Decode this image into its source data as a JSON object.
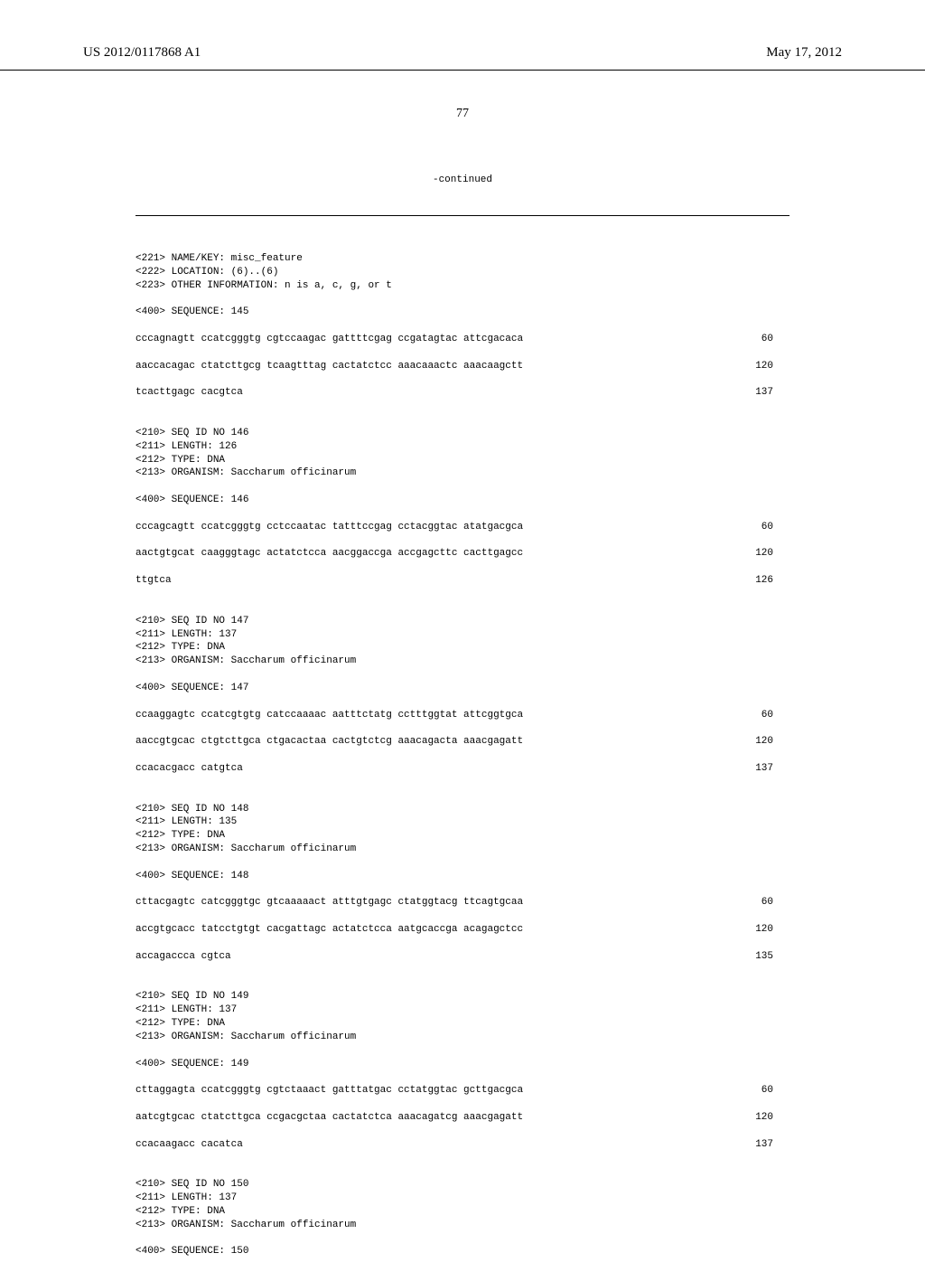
{
  "header": {
    "pub_number": "US 2012/0117868 A1",
    "pub_date": "May 17, 2012"
  },
  "page_number": "77",
  "continued_label": "-continued",
  "sequences": [
    {
      "pre": [
        "<221> NAME/KEY: misc_feature",
        "<222> LOCATION: (6)..(6)",
        "<223> OTHER INFORMATION: n is a, c, g, or t",
        "",
        "<400> SEQUENCE: 145",
        ""
      ],
      "rows": [
        {
          "t": "cccagnagtt ccatcgggtg cgtccaagac gattttcgag ccgatagtac attcgacaca",
          "n": "60"
        },
        {
          "t": "",
          "n": ""
        },
        {
          "t": "aaccacagac ctatcttgcg tcaagtttag cactatctcc aaacaaactc aaacaagctt",
          "n": "120"
        },
        {
          "t": "",
          "n": ""
        },
        {
          "t": "tcacttgagc cacgtca",
          "n": "137"
        }
      ]
    },
    {
      "pre": [
        "",
        "",
        "<210> SEQ ID NO 146",
        "<211> LENGTH: 126",
        "<212> TYPE: DNA",
        "<213> ORGANISM: Saccharum officinarum",
        "",
        "<400> SEQUENCE: 146",
        ""
      ],
      "rows": [
        {
          "t": "cccagcagtt ccatcgggtg cctccaatac tatttccgag cctacggtac atatgacgca",
          "n": "60"
        },
        {
          "t": "",
          "n": ""
        },
        {
          "t": "aactgtgcat caagggtagc actatctcca aacggaccga accgagcttc cacttgagcc",
          "n": "120"
        },
        {
          "t": "",
          "n": ""
        },
        {
          "t": "ttgtca",
          "n": "126"
        }
      ]
    },
    {
      "pre": [
        "",
        "",
        "<210> SEQ ID NO 147",
        "<211> LENGTH: 137",
        "<212> TYPE: DNA",
        "<213> ORGANISM: Saccharum officinarum",
        "",
        "<400> SEQUENCE: 147",
        ""
      ],
      "rows": [
        {
          "t": "ccaaggagtc ccatcgtgtg catccaaaac aatttctatg cctttggtat attcggtgca",
          "n": "60"
        },
        {
          "t": "",
          "n": ""
        },
        {
          "t": "aaccgtgcac ctgtcttgca ctgacactaa cactgtctcg aaacagacta aaacgagatt",
          "n": "120"
        },
        {
          "t": "",
          "n": ""
        },
        {
          "t": "ccacacgacc catgtca",
          "n": "137"
        }
      ]
    },
    {
      "pre": [
        "",
        "",
        "<210> SEQ ID NO 148",
        "<211> LENGTH: 135",
        "<212> TYPE: DNA",
        "<213> ORGANISM: Saccharum officinarum",
        "",
        "<400> SEQUENCE: 148",
        ""
      ],
      "rows": [
        {
          "t": "cttacgagtc catcgggtgc gtcaaaaact atttgtgagc ctatggtacg ttcagtgcaa",
          "n": "60"
        },
        {
          "t": "",
          "n": ""
        },
        {
          "t": "accgtgcacc tatcctgtgt cacgattagc actatctcca aatgcaccga acagagctcc",
          "n": "120"
        },
        {
          "t": "",
          "n": ""
        },
        {
          "t": "accagaccca cgtca",
          "n": "135"
        }
      ]
    },
    {
      "pre": [
        "",
        "",
        "<210> SEQ ID NO 149",
        "<211> LENGTH: 137",
        "<212> TYPE: DNA",
        "<213> ORGANISM: Saccharum officinarum",
        "",
        "<400> SEQUENCE: 149",
        ""
      ],
      "rows": [
        {
          "t": "cttaggagta ccatcgggtg cgtctaaact gatttatgac cctatggtac gcttgacgca",
          "n": "60"
        },
        {
          "t": "",
          "n": ""
        },
        {
          "t": "aatcgtgcac ctatcttgca ccgacgctaa cactatctca aaacagatcg aaacgagatt",
          "n": "120"
        },
        {
          "t": "",
          "n": ""
        },
        {
          "t": "ccacaagacc cacatca",
          "n": "137"
        }
      ]
    },
    {
      "pre": [
        "",
        "",
        "<210> SEQ ID NO 150",
        "<211> LENGTH: 137",
        "<212> TYPE: DNA",
        "<213> ORGANISM: Saccharum officinarum",
        "",
        "<400> SEQUENCE: 150"
      ],
      "rows": []
    }
  ]
}
